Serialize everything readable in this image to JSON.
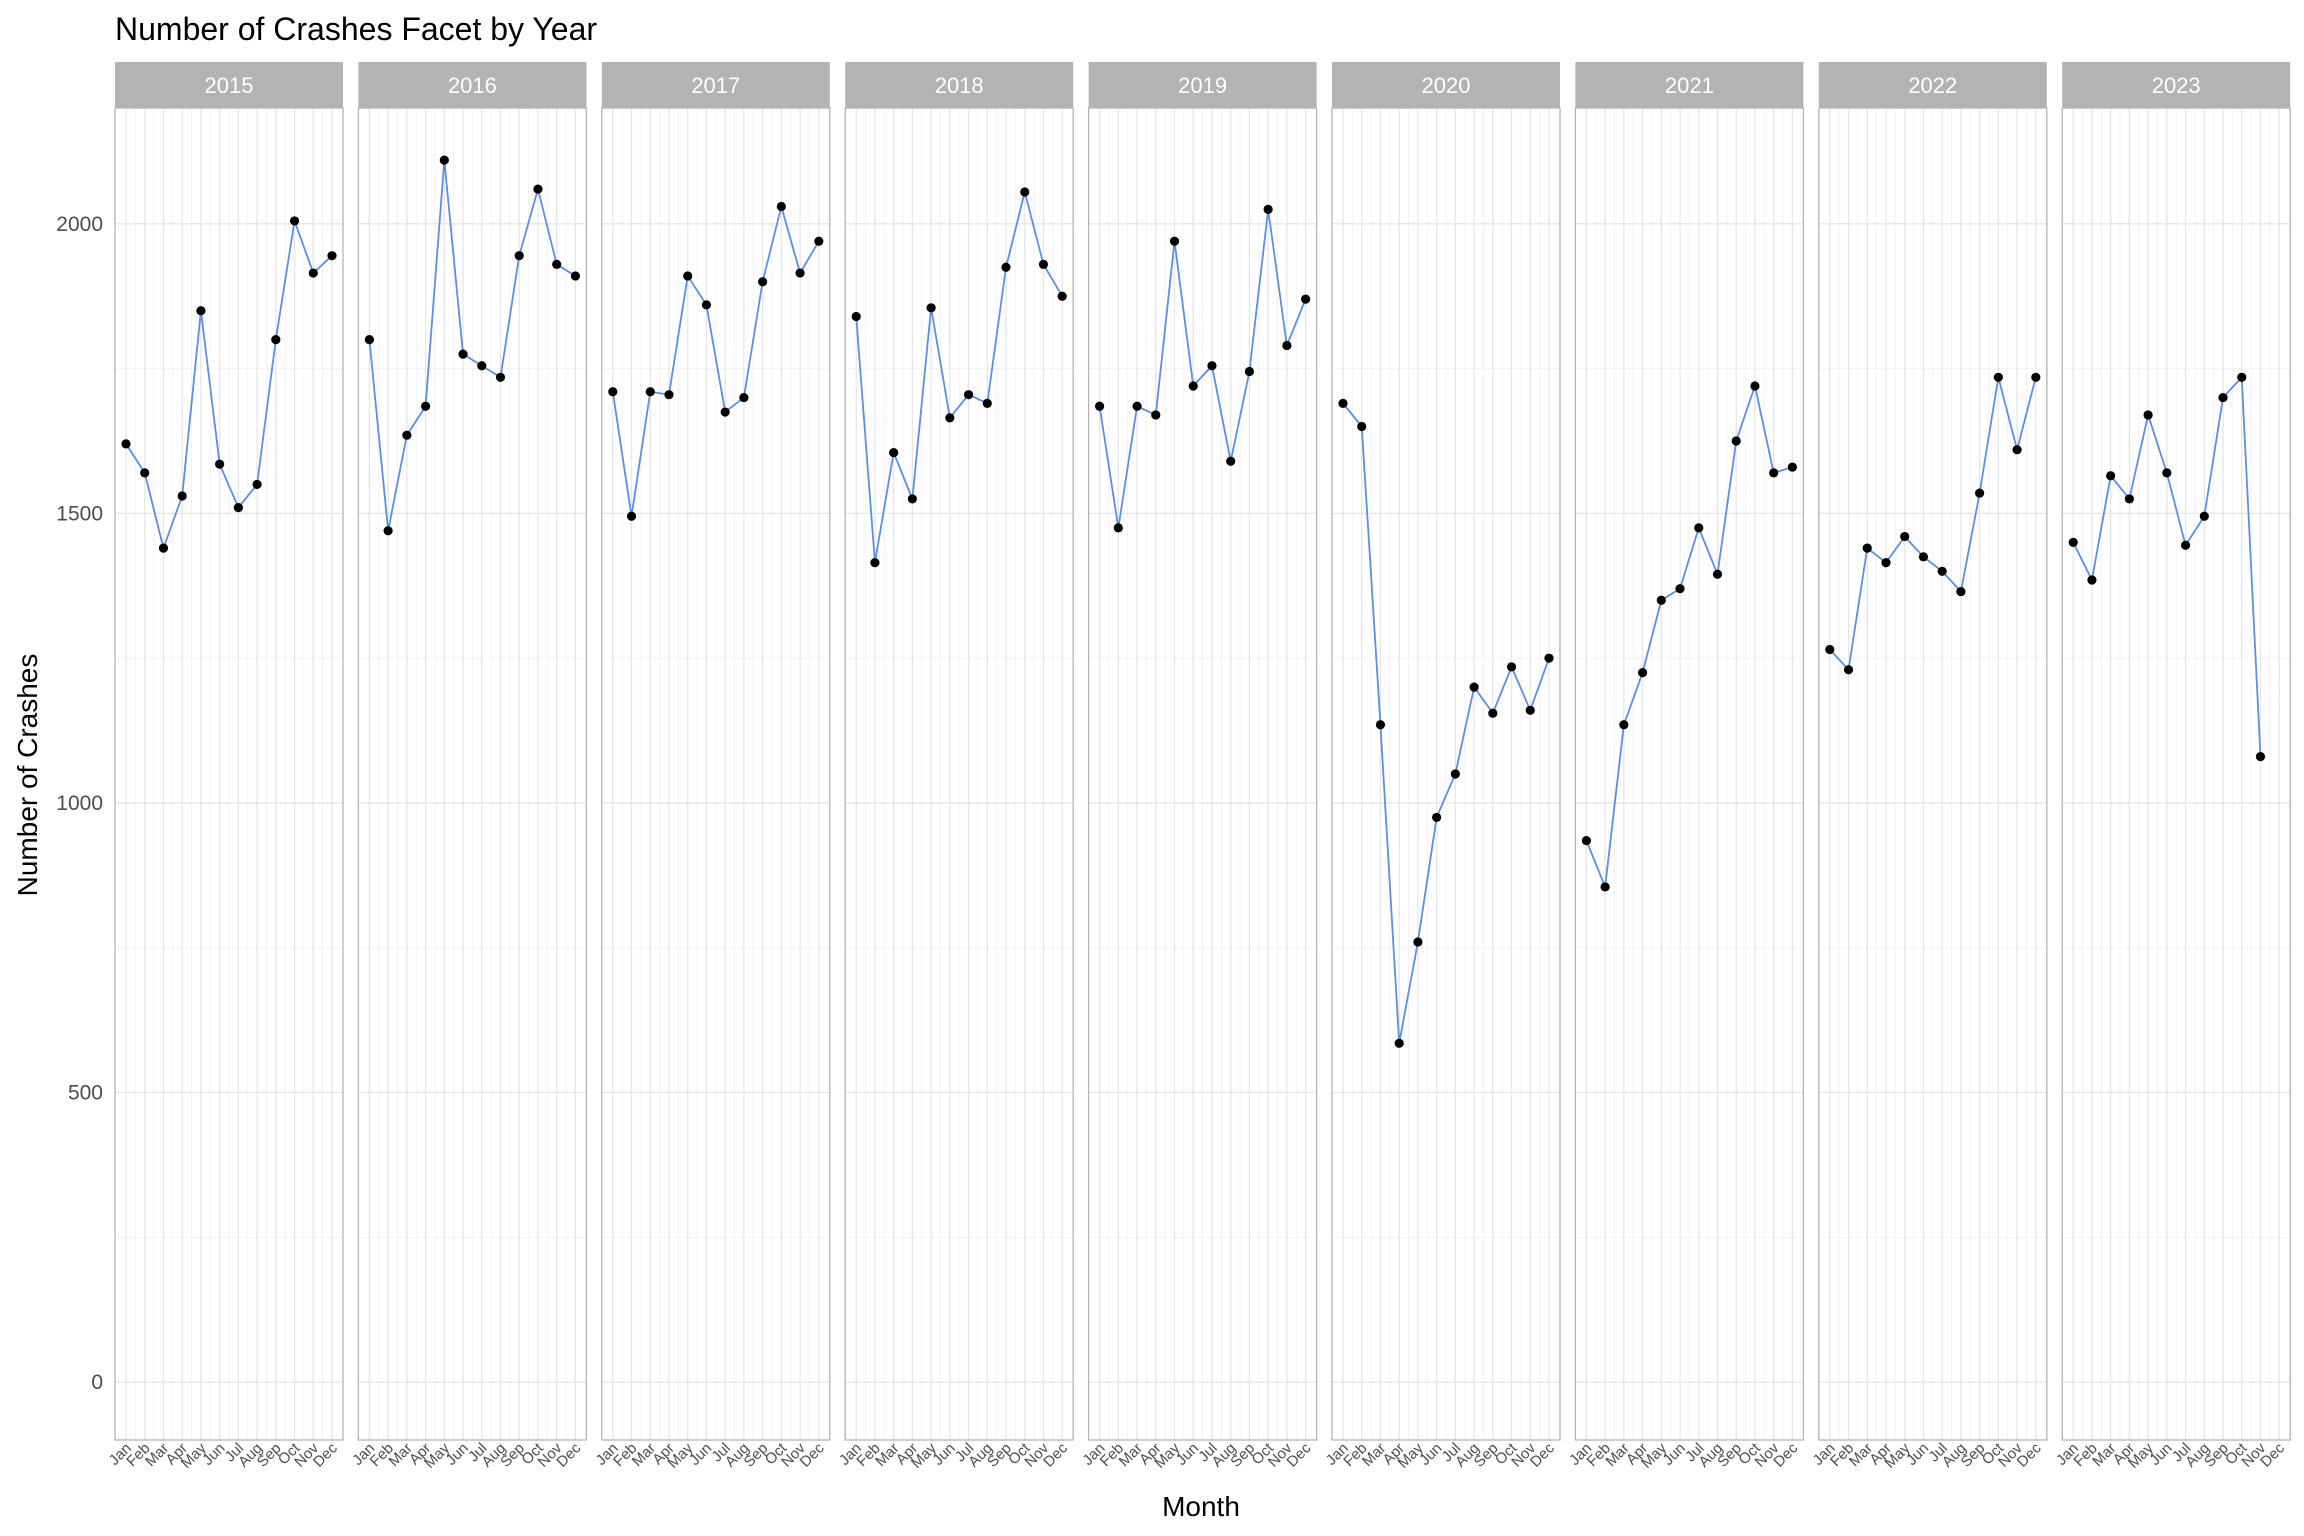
{
  "chart_data": {
    "type": "line",
    "title": "Number of Crashes Facet by Year",
    "xlabel": "Month",
    "ylabel": "Number of Crashes",
    "ylim": [
      -100,
      2200
    ],
    "yticks": [
      0,
      500,
      1000,
      1500,
      2000
    ],
    "grid": true,
    "legend": "none",
    "line_color": "#5b8fe0",
    "point_color": "#000000",
    "strip_color": "#b3b3b3",
    "categories": [
      "Jan",
      "Feb",
      "Mar",
      "Apr",
      "May",
      "Jun",
      "Jul",
      "Aug",
      "Sep",
      "Oct",
      "Nov",
      "Dec"
    ],
    "facets": [
      {
        "year": "2015",
        "values": [
          1620,
          1570,
          1440,
          1530,
          1850,
          1585,
          1510,
          1550,
          1800,
          2005,
          1915,
          1945
        ]
      },
      {
        "year": "2016",
        "values": [
          1800,
          1470,
          1635,
          1685,
          2110,
          1775,
          1755,
          1735,
          1945,
          2060,
          1930,
          1910
        ]
      },
      {
        "year": "2017",
        "values": [
          1710,
          1495,
          1710,
          1705,
          1910,
          1860,
          1675,
          1700,
          1900,
          2030,
          1915,
          1970
        ]
      },
      {
        "year": "2018",
        "values": [
          1840,
          1415,
          1605,
          1525,
          1855,
          1665,
          1705,
          1690,
          1925,
          2055,
          1930,
          1875
        ]
      },
      {
        "year": "2019",
        "values": [
          1685,
          1475,
          1685,
          1670,
          1970,
          1720,
          1755,
          1590,
          1745,
          2025,
          1790,
          1870
        ]
      },
      {
        "year": "2020",
        "values": [
          1690,
          1650,
          1135,
          585,
          760,
          975,
          1050,
          1200,
          1155,
          1235,
          1160,
          1250
        ]
      },
      {
        "year": "2021",
        "values": [
          935,
          855,
          1135,
          1225,
          1350,
          1370,
          1475,
          1395,
          1625,
          1720,
          1570,
          1580
        ]
      },
      {
        "year": "2022",
        "values": [
          1265,
          1230,
          1440,
          1415,
          1460,
          1425,
          1400,
          1365,
          1535,
          1735,
          1610,
          1735
        ]
      },
      {
        "year": "2023",
        "values": [
          1450,
          1385,
          1565,
          1525,
          1670,
          1570,
          1445,
          1495,
          1700,
          1735,
          1080,
          null
        ]
      }
    ]
  }
}
